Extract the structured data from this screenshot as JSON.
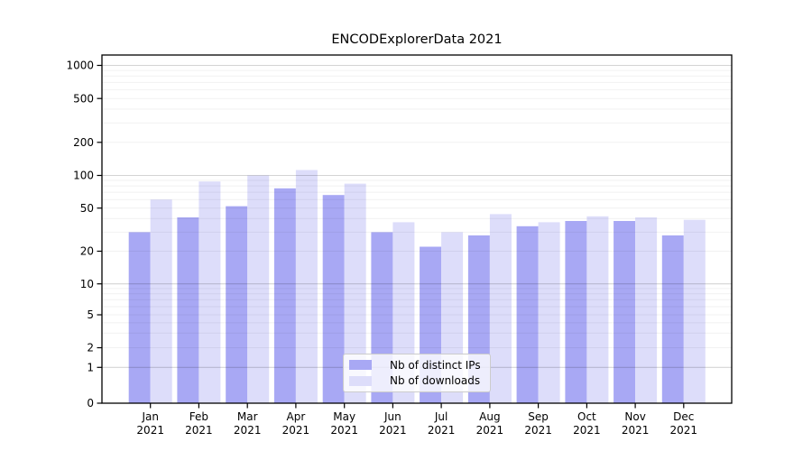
{
  "title": "ENCODExplorerData 2021",
  "chart_data": {
    "type": "bar",
    "title": "ENCODExplorerData 2021",
    "categories": [
      "Jan 2021",
      "Feb 2021",
      "Mar 2021",
      "Apr 2021",
      "May 2021",
      "Jun 2021",
      "Jul 2021",
      "Aug 2021",
      "Sep 2021",
      "Oct 2021",
      "Nov 2021",
      "Dec 2021"
    ],
    "category_months": [
      "Jan",
      "Feb",
      "Mar",
      "Apr",
      "May",
      "Jun",
      "Jul",
      "Aug",
      "Sep",
      "Oct",
      "Nov",
      "Dec"
    ],
    "category_year": "2021",
    "series": [
      {
        "name": "Nb of distinct IPs",
        "color": "#a8a8f4",
        "values": [
          30,
          41,
          52,
          76,
          66,
          30,
          22,
          28,
          34,
          38,
          38,
          28
        ]
      },
      {
        "name": "Nb of downloads",
        "color": "#ddddfa",
        "values": [
          60,
          88,
          100,
          112,
          84,
          37,
          30,
          44,
          37,
          42,
          41,
          39
        ]
      }
    ],
    "xlabel": "",
    "ylabel": "",
    "yscale": "symlog",
    "ylim": [
      0,
      1000
    ],
    "yticks": [
      0,
      1,
      2,
      5,
      10,
      20,
      50,
      100,
      200,
      500,
      1000
    ],
    "grid": true,
    "legend_position": "lower-center"
  },
  "legend": {
    "items": [
      {
        "label": "Nb of distinct IPs",
        "color": "#a8a8f4"
      },
      {
        "label": "Nb of downloads",
        "color": "#ddddfa"
      }
    ]
  }
}
